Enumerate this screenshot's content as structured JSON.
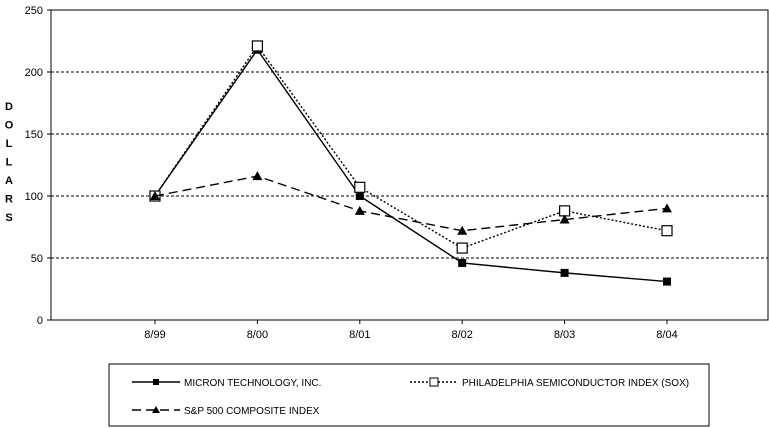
{
  "chart_data": {
    "type": "line",
    "title": "",
    "xlabel": "",
    "ylabel": "DOLLARS",
    "ylim": [
      0,
      250
    ],
    "yticks": [
      0,
      50,
      100,
      150,
      200,
      250
    ],
    "categories": [
      "8/99",
      "8/00",
      "8/01",
      "8/02",
      "8/03",
      "8/04"
    ],
    "grid": "horizontal dashed",
    "legend_placement": "bottom",
    "series": [
      {
        "name": "MICRON TECHNOLOGY, INC.",
        "values": [
          100,
          218,
          100,
          46,
          38,
          31
        ],
        "line": "solid",
        "marker": "filled-square",
        "color": "#000000"
      },
      {
        "name": "PHILADELPHIA SEMICONDUCTOR INDEX (SOX)",
        "values": [
          100,
          221,
          107,
          58,
          88,
          72
        ],
        "line": "dotted",
        "marker": "open-square",
        "color": "#000000"
      },
      {
        "name": "S&P 500 COMPOSITE INDEX",
        "values": [
          100,
          116,
          88,
          72,
          81,
          90
        ],
        "line": "dashed",
        "marker": "filled-triangle",
        "color": "#000000"
      }
    ]
  }
}
